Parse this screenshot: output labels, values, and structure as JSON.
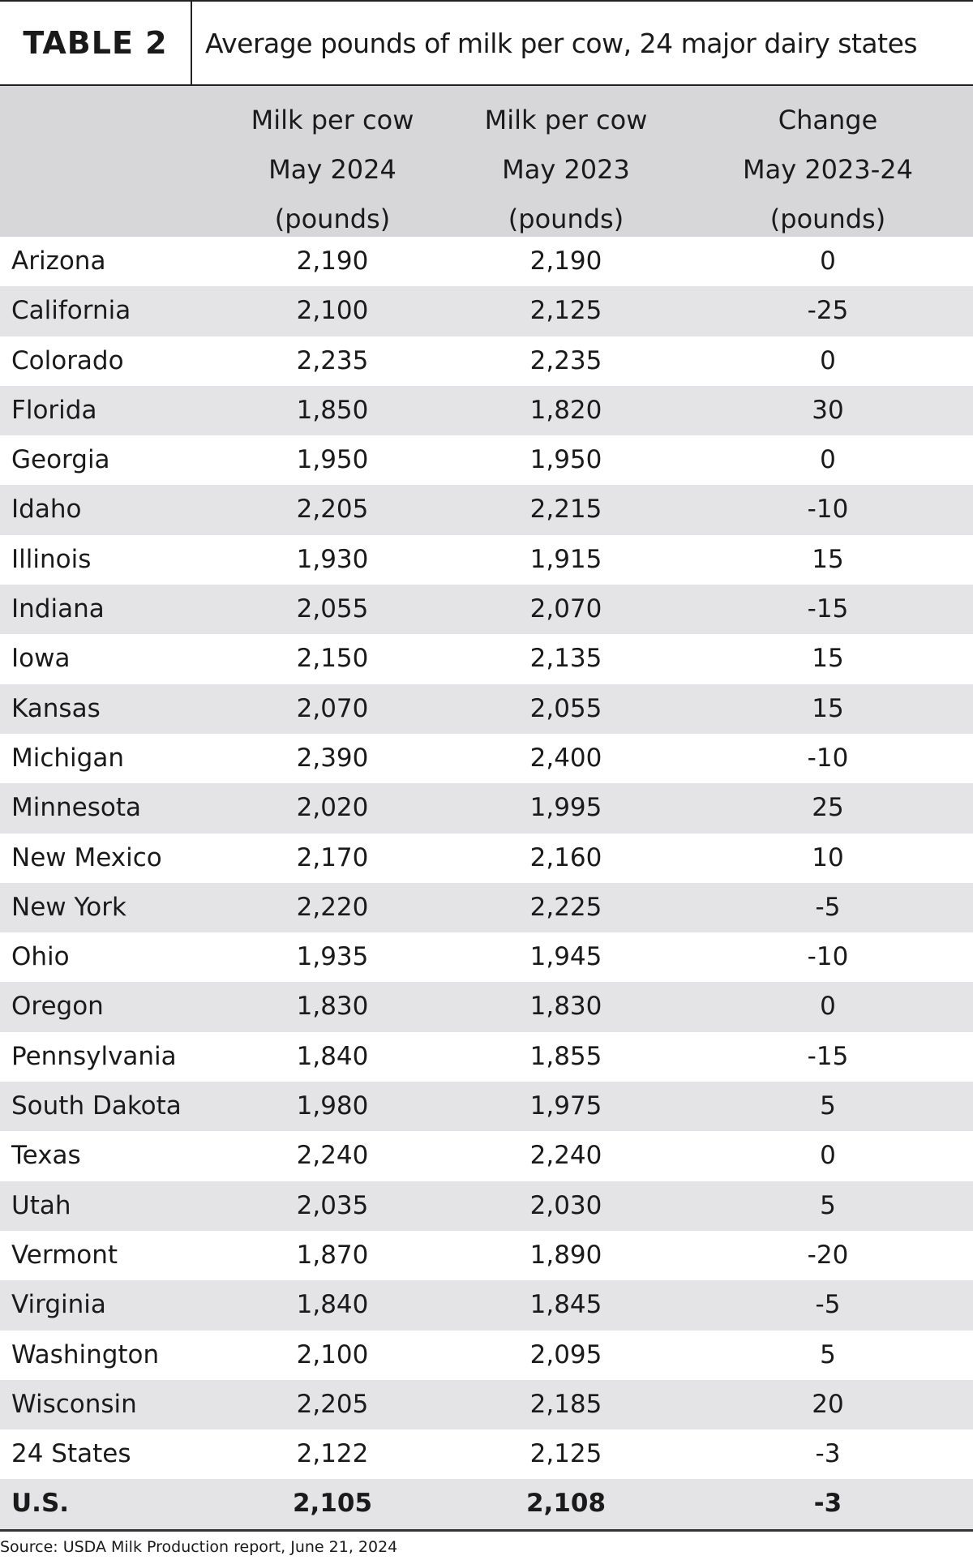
{
  "header": {
    "label": "TABLE 2",
    "title": "Average pounds of milk per cow, 24 major dairy states"
  },
  "table": {
    "column_headers": [
      [
        "Milk per cow",
        "May 2024",
        "(pounds)"
      ],
      [
        "Milk per cow",
        "May 2023",
        "(pounds)"
      ],
      [
        "Change",
        "May 2023-24",
        "(pounds)"
      ]
    ],
    "rows": [
      [
        "Arizona",
        "2,190",
        "2,190",
        "0"
      ],
      [
        "California",
        "2,100",
        "2,125",
        "-25"
      ],
      [
        "Colorado",
        "2,235",
        "2,235",
        "0"
      ],
      [
        "Florida",
        "1,850",
        "1,820",
        "30"
      ],
      [
        "Georgia",
        "1,950",
        "1,950",
        "0"
      ],
      [
        "Idaho",
        "2,205",
        "2,215",
        "-10"
      ],
      [
        "Illinois",
        "1,930",
        "1,915",
        "15"
      ],
      [
        "Indiana",
        "2,055",
        "2,070",
        "-15"
      ],
      [
        "Iowa",
        "2,150",
        "2,135",
        "15"
      ],
      [
        "Kansas",
        "2,070",
        "2,055",
        "15"
      ],
      [
        "Michigan",
        "2,390",
        "2,400",
        "-10"
      ],
      [
        "Minnesota",
        "2,020",
        "1,995",
        "25"
      ],
      [
        "New Mexico",
        "2,170",
        "2,160",
        "10"
      ],
      [
        "New York",
        "2,220",
        "2,225",
        "-5"
      ],
      [
        "Ohio",
        "1,935",
        "1,945",
        "-10"
      ],
      [
        "Oregon",
        "1,830",
        "1,830",
        "0"
      ],
      [
        "Pennsylvania",
        "1,840",
        "1,855",
        "-15"
      ],
      [
        "South Dakota",
        "1,980",
        "1,975",
        "5"
      ],
      [
        "Texas",
        "2,240",
        "2,240",
        "0"
      ],
      [
        "Utah",
        "2,035",
        "2,030",
        "5"
      ],
      [
        "Vermont",
        "1,870",
        "1,890",
        "-20"
      ],
      [
        "Virginia",
        "1,840",
        "1,845",
        "-5"
      ],
      [
        "Washington",
        "2,100",
        "2,095",
        "5"
      ],
      [
        "Wisconsin",
        "2,205",
        "2,185",
        "20"
      ],
      [
        "24 States",
        "2,122",
        "2,125",
        "-3"
      ],
      [
        "U.S.",
        "2,105",
        "2,108",
        "-3"
      ]
    ]
  },
  "footer": {
    "source": "Source: USDA Milk Production report, June 21, 2024"
  }
}
